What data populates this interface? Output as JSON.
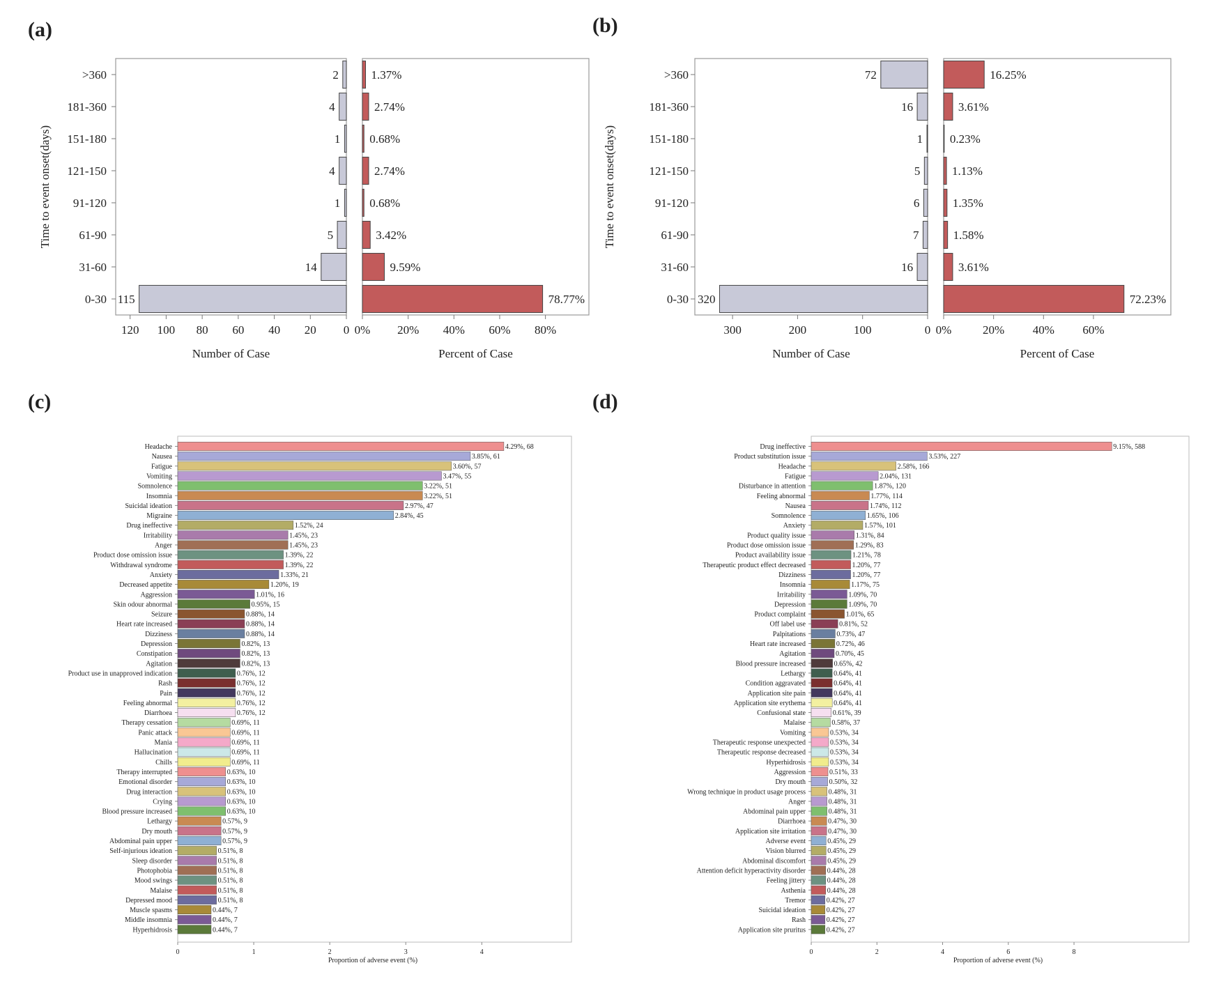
{
  "chart_data": [
    {
      "panel": "(a)",
      "type": "bar",
      "orientation": "horizontal-mirrored",
      "ylabel": "Time to event onset(days)",
      "categories": [
        ">360",
        "181-360",
        "151-180",
        "121-150",
        "91-120",
        "61-90",
        "31-60",
        "0-30"
      ],
      "left": {
        "xlabel": "Number of Case",
        "values": [
          2,
          4,
          1,
          4,
          1,
          5,
          14,
          115
        ],
        "labels": [
          "2",
          "4",
          "1",
          "4",
          "1",
          "5",
          "14",
          "115"
        ],
        "xlim": [
          0,
          128
        ],
        "ticks": [
          120,
          100,
          80,
          60,
          40,
          20,
          0
        ],
        "tick_labels": [
          "120",
          "100",
          "80",
          "60",
          "40",
          "20",
          "0"
        ],
        "color": "#c8c9d8"
      },
      "right": {
        "xlabel": "Percent of Case",
        "values": [
          1.37,
          2.74,
          0.68,
          2.74,
          0.68,
          3.42,
          9.59,
          78.77
        ],
        "labels": [
          "1.37%",
          "2.74%",
          "0.68%",
          "2.74%",
          "0.68%",
          "3.42%",
          "9.59%",
          "78.77%"
        ],
        "xlim": [
          0,
          99
        ],
        "ticks": [
          0,
          20,
          40,
          60,
          80
        ],
        "tick_labels": [
          "0%",
          "20%",
          "40%",
          "60%",
          "80%"
        ],
        "color": "#c25b5b"
      }
    },
    {
      "panel": "(b)",
      "type": "bar",
      "orientation": "horizontal-mirrored",
      "ylabel": "Time to event onset(days)",
      "categories": [
        ">360",
        "181-360",
        "151-180",
        "121-150",
        "91-120",
        "61-90",
        "31-60",
        "0-30"
      ],
      "left": {
        "xlabel": "Number of Case",
        "values": [
          72,
          16,
          1,
          5,
          6,
          7,
          16,
          320
        ],
        "labels": [
          "72",
          "16",
          "1",
          "5",
          "6",
          "7",
          "16",
          "320"
        ],
        "xlim": [
          0,
          358
        ],
        "ticks": [
          300,
          200,
          100,
          0
        ],
        "tick_labels": [
          "300",
          "200",
          "100",
          "0"
        ],
        "color": "#c8c9d8"
      },
      "right": {
        "xlabel": "Percent of Case",
        "values": [
          16.25,
          3.61,
          0.23,
          1.13,
          1.35,
          1.58,
          3.61,
          72.23
        ],
        "labels": [
          "16.25%",
          "3.61%",
          "0.23%",
          "1.13%",
          "1.35%",
          "1.58%",
          "3.61%",
          "72.23%"
        ],
        "xlim": [
          0,
          91
        ],
        "ticks": [
          0,
          20,
          40,
          60
        ],
        "tick_labels": [
          "0%",
          "20%",
          "40%",
          "60%"
        ],
        "color": "#c25b5b"
      }
    },
    {
      "panel": "(c)",
      "type": "bar",
      "orientation": "horizontal",
      "xlabel": "Proportion of adverse event (%)",
      "xlim": [
        0,
        5.18
      ],
      "ticks": [
        0,
        1,
        2,
        3,
        4
      ],
      "tick_labels": [
        "0",
        "1",
        "2",
        "3",
        "4"
      ],
      "categories": [
        "Headache",
        "Nausea",
        "Fatigue",
        "Vomiting",
        "Somnolence",
        "Insomnia",
        "Suicidal ideation",
        "Migraine",
        "Drug ineffective",
        "Irritability",
        "Anger",
        "Product dose omission issue",
        "Withdrawal syndrome",
        "Anxiety",
        "Decreased appetite",
        "Aggression",
        "Skin odour abnormal",
        "Seizure",
        "Heart rate increased",
        "Dizziness",
        "Depression",
        "Constipation",
        "Agitation",
        "Product use in unapproved indication",
        "Rash",
        "Pain",
        "Feeling abnormal",
        "Diarrhoea",
        "Therapy cessation",
        "Panic attack",
        "Mania",
        "Hallucination",
        "Chills",
        "Therapy interrupted",
        "Emotional disorder",
        "Drug interaction",
        "Crying",
        "Blood pressure increased",
        "Lethargy",
        "Dry mouth",
        "Abdominal pain upper",
        "Self-injurious ideation",
        "Sleep disorder",
        "Photophobia",
        "Mood swings",
        "Malaise",
        "Depressed mood",
        "Muscle spasms",
        "Middle insomnia",
        "Hyperhidrosis"
      ],
      "values": [
        4.29,
        3.85,
        3.6,
        3.47,
        3.22,
        3.22,
        2.97,
        2.84,
        1.52,
        1.45,
        1.45,
        1.39,
        1.39,
        1.33,
        1.2,
        1.01,
        0.95,
        0.88,
        0.88,
        0.88,
        0.82,
        0.82,
        0.82,
        0.76,
        0.76,
        0.76,
        0.76,
        0.76,
        0.69,
        0.69,
        0.69,
        0.69,
        0.69,
        0.63,
        0.63,
        0.63,
        0.63,
        0.63,
        0.57,
        0.57,
        0.57,
        0.51,
        0.51,
        0.51,
        0.51,
        0.51,
        0.51,
        0.44,
        0.44,
        0.44
      ],
      "labels": [
        "4.29%, 68",
        "3.85%, 61",
        "3.60%, 57",
        "3.47%, 55",
        "3.22%, 51",
        "3.22%, 51",
        "2.97%, 47",
        "2.84%, 45",
        "1.52%, 24",
        "1.45%, 23",
        "1.45%, 23",
        "1.39%, 22",
        "1.39%, 22",
        "1.33%, 21",
        "1.20%, 19",
        "1.01%, 16",
        "0.95%, 15",
        "0.88%, 14",
        "0.88%, 14",
        "0.88%, 14",
        "0.82%, 13",
        "0.82%, 13",
        "0.82%, 13",
        "0.76%, 12",
        "0.76%, 12",
        "0.76%, 12",
        "0.76%, 12",
        "0.76%, 12",
        "0.69%, 11",
        "0.69%, 11",
        "0.69%, 11",
        "0.69%, 11",
        "0.69%, 11",
        "0.63%, 10",
        "0.63%, 10",
        "0.63%, 10",
        "0.63%, 10",
        "0.63%, 10",
        "0.57%, 9",
        "0.57%, 9",
        "0.57%, 9",
        "0.51%, 8",
        "0.51%, 8",
        "0.51%, 8",
        "0.51%, 8",
        "0.51%, 8",
        "0.51%, 8",
        "0.44%, 7",
        "0.44%, 7",
        "0.44%, 7"
      ]
    },
    {
      "panel": "(d)",
      "type": "bar",
      "orientation": "horizontal",
      "xlabel": "Proportion of adverse event (%)",
      "xlim": [
        0,
        11.5
      ],
      "ticks": [
        0,
        2,
        4,
        6,
        8
      ],
      "tick_labels": [
        "0",
        "2",
        "4",
        "6",
        "8"
      ],
      "categories": [
        "Drug ineffective",
        "Product substitution issue",
        "Headache",
        "Fatigue",
        "Disturbance in attention",
        "Feeling abnormal",
        "Nausea",
        "Somnolence",
        "Anxiety",
        "Product quality issue",
        "Product dose omission issue",
        "Product availability issue",
        "Therapeutic product effect decreased",
        "Dizziness",
        "Insomnia",
        "Irritability",
        "Depression",
        "Product complaint",
        "Off label use",
        "Palpitations",
        "Heart rate increased",
        "Agitation",
        "Blood pressure increased",
        "Lethargy",
        "Condition aggravated",
        "Application site pain",
        "Application site erythema",
        "Confusional state",
        "Malaise",
        "Vomiting",
        "Therapeutic response unexpected",
        "Therapeutic response decreased",
        "Hyperhidrosis",
        "Aggression",
        "Dry mouth",
        "Wrong technique in product usage process",
        "Anger",
        "Abdominal pain upper",
        "Diarrhoea",
        "Application site irritation",
        "Adverse event",
        "Vision blurred",
        "Abdominal discomfort",
        "Attention deficit hyperactivity disorder",
        "Feeling jittery",
        "Asthenia",
        "Tremor",
        "Suicidal ideation",
        "Rash",
        "Application site pruritus"
      ],
      "values": [
        9.15,
        3.53,
        2.58,
        2.04,
        1.87,
        1.77,
        1.74,
        1.65,
        1.57,
        1.31,
        1.29,
        1.21,
        1.2,
        1.2,
        1.17,
        1.09,
        1.09,
        1.01,
        0.81,
        0.73,
        0.72,
        0.7,
        0.65,
        0.64,
        0.64,
        0.64,
        0.64,
        0.61,
        0.58,
        0.53,
        0.53,
        0.53,
        0.53,
        0.51,
        0.5,
        0.48,
        0.48,
        0.48,
        0.47,
        0.47,
        0.45,
        0.45,
        0.45,
        0.44,
        0.44,
        0.44,
        0.42,
        0.42,
        0.42,
        0.42
      ],
      "labels": [
        "9.15%, 588",
        "3.53%, 227",
        "2.58%, 166",
        "2.04%, 131",
        "1.87%, 120",
        "1.77%, 114",
        "1.74%, 112",
        "1.65%, 106",
        "1.57%, 101",
        "1.31%, 84",
        "1.29%, 83",
        "1.21%, 78",
        "1.20%, 77",
        "1.20%, 77",
        "1.17%, 75",
        "1.09%, 70",
        "1.09%, 70",
        "1.01%, 65",
        "0.81%, 52",
        "0.73%, 47",
        "0.72%, 46",
        "0.70%, 45",
        "0.65%, 42",
        "0.64%, 41",
        "0.64%, 41",
        "0.64%, 41",
        "0.64%, 41",
        "0.61%, 39",
        "0.58%, 37",
        "0.53%, 34",
        "0.53%, 34",
        "0.53%, 34",
        "0.53%, 34",
        "0.51%, 33",
        "0.50%, 32",
        "0.48%, 31",
        "0.48%, 31",
        "0.48%, 31",
        "0.47%, 30",
        "0.47%, 30",
        "0.45%, 29",
        "0.45%, 29",
        "0.45%, 29",
        "0.44%, 28",
        "0.44%, 28",
        "0.44%, 28",
        "0.42%, 27",
        "0.42%, 27",
        "0.42%, 27",
        "0.42%, 27"
      ]
    }
  ],
  "bar_palette": [
    "#ee8f8f",
    "#a7a9d8",
    "#d8c27a",
    "#b89ad0",
    "#7fbf6e",
    "#c98a52",
    "#c97389",
    "#8fb0d4",
    "#b3ac66",
    "#a97bab",
    "#a06f55",
    "#6d9281",
    "#c25b5b",
    "#6c6c9e",
    "#a88a38",
    "#7b5a95",
    "#5b7a3a",
    "#8a5530",
    "#8a3f55",
    "#6a7fa0",
    "#7a7536",
    "#6f4a7e",
    "#4f3b3b",
    "#3f5e4e",
    "#7a2f2f",
    "#43385e",
    "#f3f0a0",
    "#f6dff0",
    "#b5dba1",
    "#f9c794",
    "#f4a9c9",
    "#cce8e8",
    "#f1ec8d"
  ]
}
